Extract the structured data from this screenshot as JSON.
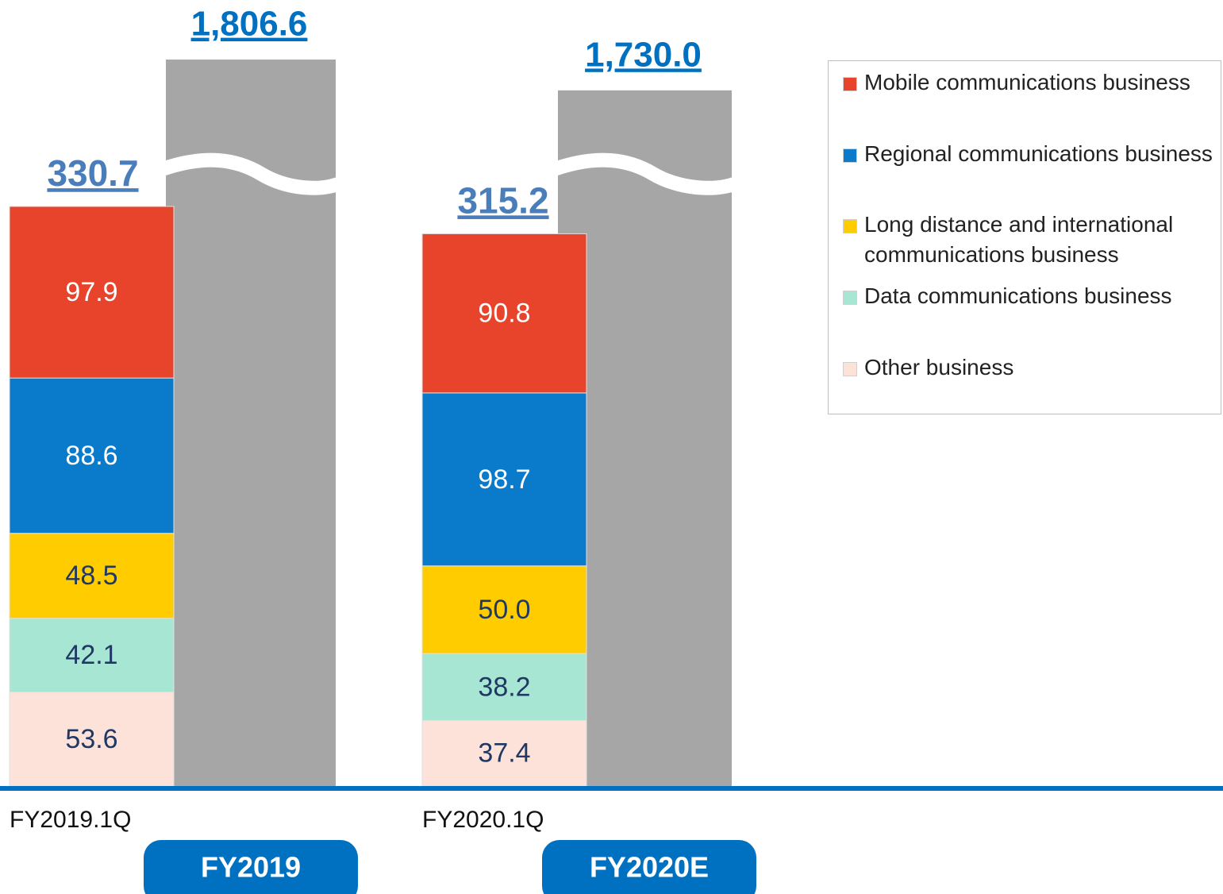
{
  "chart_data": {
    "type": "stacked_bar",
    "categories": [
      "FY2019.1Q",
      "FY2020.1Q"
    ],
    "series": [
      {
        "name": "Mobile communications business",
        "color": "#e8432b",
        "label_color": "#ffffff",
        "values": [
          97.9,
          90.8
        ]
      },
      {
        "name": "Regional communications business",
        "color": "#0a7acb",
        "label_color": "#ffffff",
        "values": [
          88.6,
          98.7
        ]
      },
      {
        "name": "Long distance and international communications business",
        "color": "#ffcc00",
        "label_color": "#1f3864",
        "values": [
          48.5,
          50.0
        ],
        "value_labels": [
          "48.5",
          "50.0"
        ]
      },
      {
        "name": "Data communications business",
        "color": "#a8e6d4",
        "label_color": "#1f3864",
        "values": [
          42.1,
          38.2
        ]
      },
      {
        "name": "Other business",
        "color": "#fde2d9",
        "label_color": "#1f3864",
        "values": [
          53.6,
          37.4
        ]
      }
    ],
    "totals": [
      330.7,
      315.2
    ],
    "annual": {
      "categories": [
        "FY2019",
        "FY2020E"
      ],
      "color": "#a6a6a6",
      "values": [
        1806.6,
        1730.0
      ],
      "value_labels": [
        "1,806.6",
        "1,730.0"
      ]
    }
  }
}
